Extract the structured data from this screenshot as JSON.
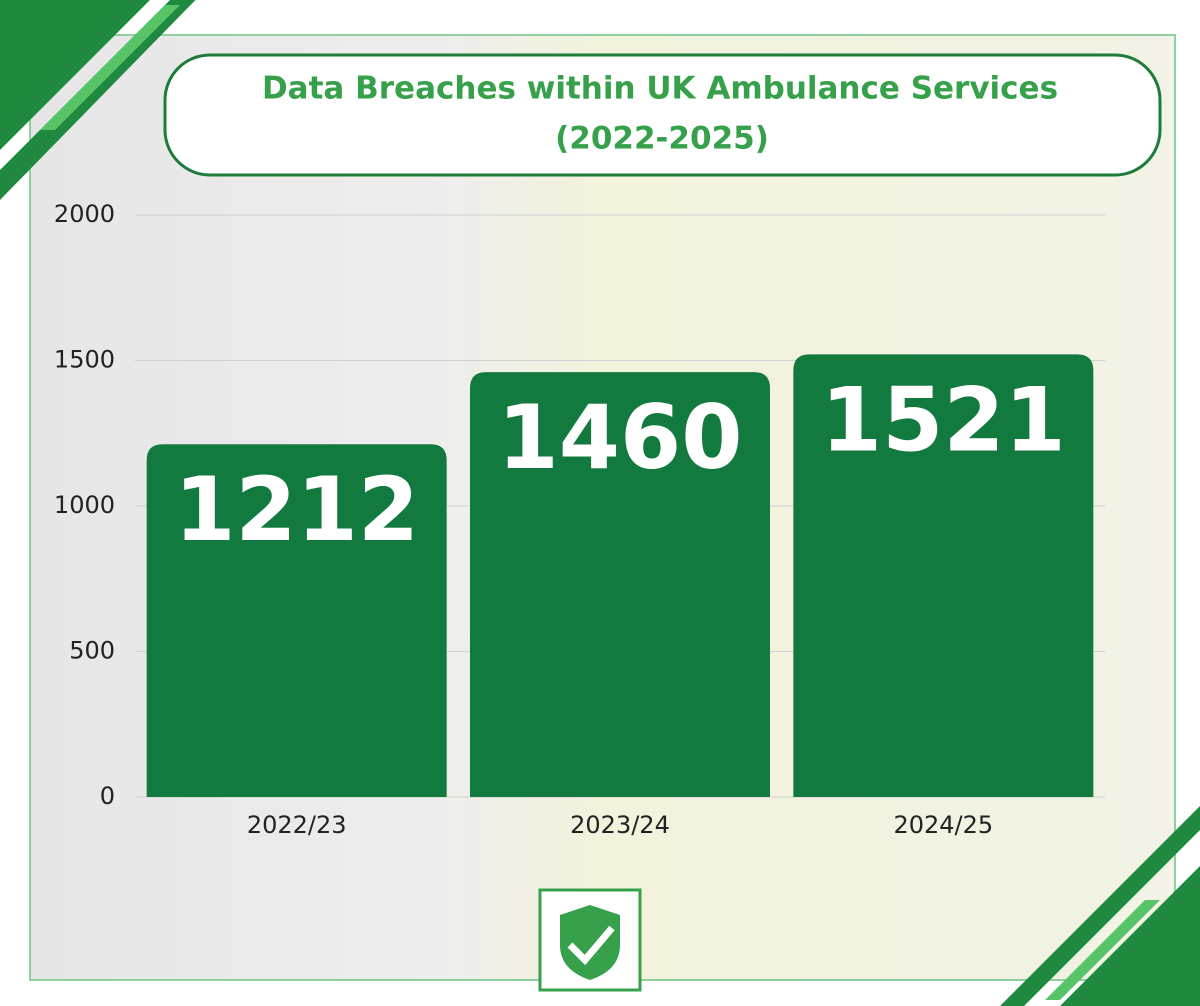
{
  "chart_data": {
    "type": "bar",
    "title": "Data Breaches within UK Ambulance Services",
    "subtitle": "(2022-2025)",
    "categories": [
      "2022/23",
      "2023/24",
      "2024/25"
    ],
    "values": [
      1212,
      1460,
      1521
    ],
    "color": "#137a3f",
    "ylim": [
      0,
      2000
    ],
    "yticks": [
      0,
      500,
      1000,
      1500,
      2000
    ],
    "grid": true
  }
}
